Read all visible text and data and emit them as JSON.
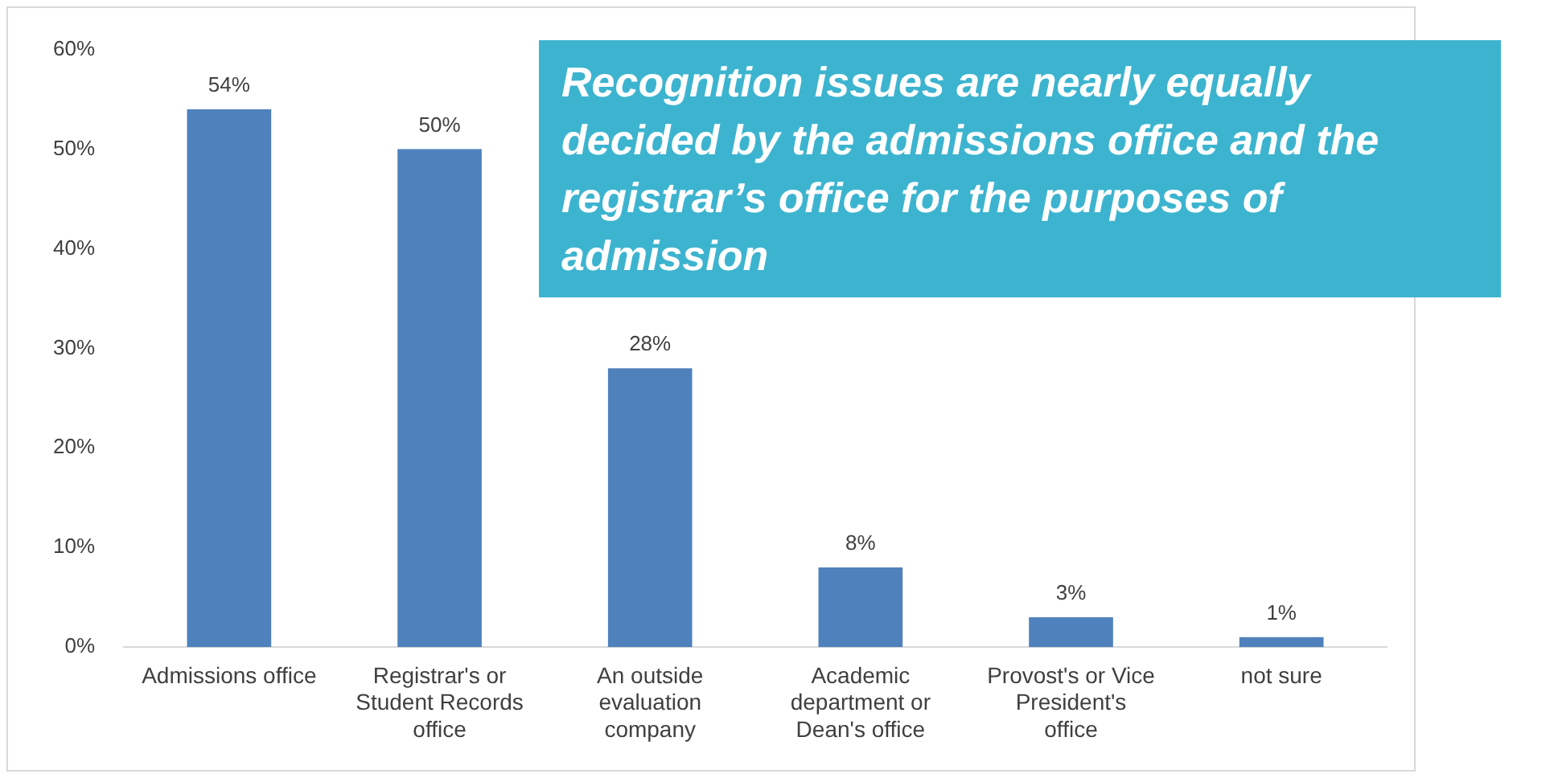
{
  "chart_data": {
    "type": "bar",
    "categories": [
      "Admissions office",
      "Registrar's or Student Records office",
      "An outside evaluation company",
      "Academic department or Dean's office",
      "Provost's or Vice President's office",
      "not sure"
    ],
    "values": [
      54,
      50,
      28,
      8,
      3,
      1
    ],
    "value_labels": [
      "54%",
      "50%",
      "28%",
      "8%",
      "3%",
      "1%"
    ],
    "color": "#4f81bd",
    "ylim": [
      0,
      60
    ],
    "yticks": [
      {
        "value": 0,
        "label": "0%"
      },
      {
        "value": 10,
        "label": "10%"
      },
      {
        "value": 20,
        "label": "20%"
      },
      {
        "value": 30,
        "label": "30%"
      },
      {
        "value": 40,
        "label": "40%"
      },
      {
        "value": 50,
        "label": "50%"
      },
      {
        "value": 60,
        "label": "60%"
      }
    ],
    "grid": false,
    "legend": false,
    "annotations": [
      "Recognition issues are nearly equally decided by the admissions office and the registrar’s office for the purposes of admission"
    ]
  }
}
